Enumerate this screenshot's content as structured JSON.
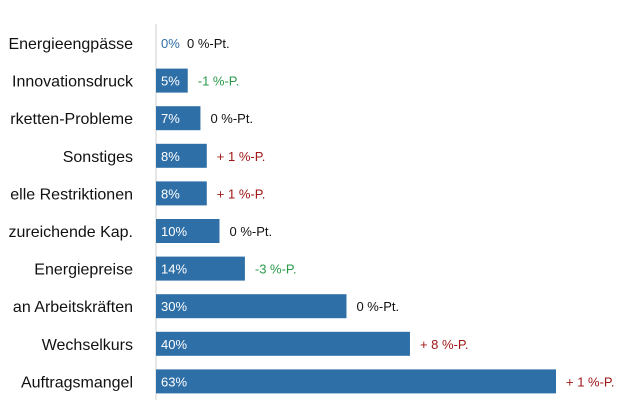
{
  "colors": {
    "bar": "#2f6fa7",
    "axis": "#cfcfcf",
    "label": "#111111",
    "value_text": "#ffffff",
    "change_neutral": "#111111",
    "change_positive": "#a01818",
    "change_negative": "#2a9a4a"
  },
  "chart_data": {
    "type": "bar",
    "orientation": "horizontal",
    "categories": [
      "Energieengpässe",
      "Innovationsdruck",
      "rketten-Probleme",
      "Sonstiges",
      "elle Restriktionen",
      "zureichende Kap.",
      "Energiepreise",
      "an Arbeitskräften",
      "Wechselkurs",
      "Auftragsmangel"
    ],
    "values": [
      0,
      5,
      7,
      8,
      8,
      10,
      14,
      30,
      40,
      63
    ],
    "value_labels": [
      "0%",
      "5%",
      "7%",
      "8%",
      "8%",
      "10%",
      "14%",
      "30%",
      "40%",
      "63%"
    ],
    "changes": [
      {
        "text": "0 %-Pt.",
        "sign": "neutral"
      },
      {
        "text": "-1 %-P.",
        "sign": "negative"
      },
      {
        "text": "0 %-Pt.",
        "sign": "neutral"
      },
      {
        "text": "+ 1 %-P.",
        "sign": "positive"
      },
      {
        "text": "+ 1 %-P.",
        "sign": "positive"
      },
      {
        "text": "0 %-Pt.",
        "sign": "neutral"
      },
      {
        "text": "-3 %-P.",
        "sign": "negative"
      },
      {
        "text": "0 %-Pt.",
        "sign": "neutral"
      },
      {
        "text": "+ 8 %-P.",
        "sign": "positive"
      },
      {
        "text": "+ 1 %-P.",
        "sign": "positive"
      }
    ],
    "xlim": [
      0,
      63
    ],
    "grid": false,
    "legend": "none"
  }
}
